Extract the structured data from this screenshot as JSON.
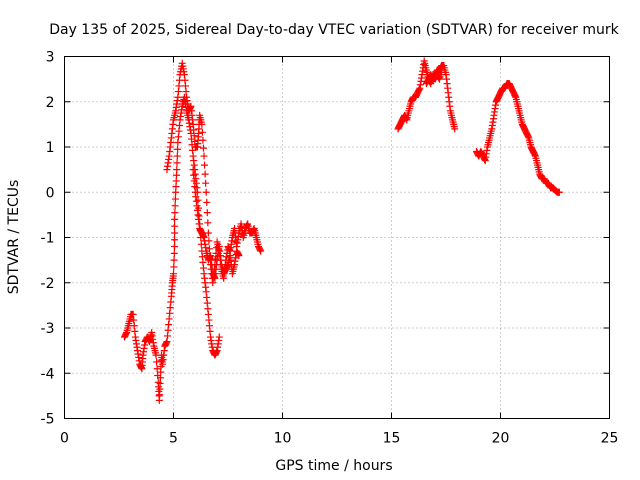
{
  "chart_data": {
    "type": "scatter",
    "title": "Day 135 of 2025, Sidereal Day-to-day VTEC variation (SDTVAR) for receiver murk",
    "xlabel": "GPS time / hours",
    "ylabel": "SDTVAR / TECUs",
    "xlim": [
      0,
      25
    ],
    "ylim": [
      -5,
      3
    ],
    "xticks": [
      0,
      5,
      10,
      15,
      20,
      25
    ],
    "yticks": [
      -5,
      -4,
      -3,
      -2,
      -1,
      0,
      1,
      2,
      3
    ],
    "xtick_labels": [
      "0",
      "5",
      "10",
      "15",
      "20",
      "25"
    ],
    "ytick_labels": [
      "-5",
      "-4",
      "-3",
      "-2",
      "-1",
      "0",
      "1",
      "2",
      "3"
    ],
    "grid": true,
    "marker": "+",
    "color": "#ff0000",
    "series": [
      {
        "name": "SDTVAR",
        "segments": [
          [
            [
              2.75,
              -3.2
            ],
            [
              2.85,
              -3.1
            ],
            [
              2.95,
              -2.9
            ],
            [
              3.05,
              -2.7
            ],
            [
              3.15,
              -2.7
            ],
            [
              3.25,
              -3.2
            ],
            [
              3.35,
              -3.5
            ],
            [
              3.45,
              -3.8
            ],
            [
              3.55,
              -3.9
            ],
            [
              3.6,
              -3.6
            ],
            [
              3.7,
              -3.3
            ],
            [
              3.8,
              -3.2
            ],
            [
              3.9,
              -3.3
            ],
            [
              4.0,
              -3.1
            ],
            [
              4.1,
              -3.4
            ],
            [
              4.2,
              -3.6
            ],
            [
              4.3,
              -4.2
            ],
            [
              4.35,
              -4.6
            ],
            [
              4.4,
              -4.1
            ],
            [
              4.45,
              -3.6
            ],
            [
              4.5,
              -3.8
            ],
            [
              4.6,
              -3.4
            ],
            [
              4.7,
              -3.3
            ],
            [
              4.8,
              -2.8
            ],
            [
              4.9,
              -2.3
            ],
            [
              4.95,
              -2.0
            ],
            [
              5.0,
              -1.8
            ],
            [
              5.05,
              -1.2
            ],
            [
              5.05,
              -0.6
            ],
            [
              5.1,
              0.0
            ],
            [
              5.15,
              0.5
            ],
            [
              5.2,
              1.1
            ],
            [
              5.3,
              1.6
            ],
            [
              5.4,
              1.9
            ],
            [
              5.5,
              2.1
            ],
            [
              5.6,
              1.8
            ],
            [
              5.7,
              1.6
            ],
            [
              5.8,
              1.3
            ],
            [
              5.9,
              0.8
            ],
            [
              6.0,
              0.4
            ],
            [
              6.1,
              0.0
            ],
            [
              6.2,
              -0.7
            ],
            [
              6.3,
              -1.3
            ],
            [
              6.4,
              -1.8
            ],
            [
              6.5,
              -2.2
            ],
            [
              6.6,
              -2.7
            ],
            [
              6.7,
              -3.2
            ],
            [
              6.8,
              -3.5
            ],
            [
              6.9,
              -3.6
            ],
            [
              7.0,
              -3.5
            ],
            [
              7.1,
              -3.2
            ]
          ],
          [
            [
              4.7,
              0.5
            ],
            [
              4.8,
              0.8
            ],
            [
              4.9,
              1.2
            ],
            [
              5.0,
              1.6
            ],
            [
              5.1,
              1.8
            ],
            [
              5.2,
              2.1
            ],
            [
              5.3,
              2.6
            ],
            [
              5.4,
              2.85
            ],
            [
              5.5,
              2.6
            ],
            [
              5.6,
              2.1
            ],
            [
              5.7,
              1.8
            ],
            [
              5.8,
              1.9
            ],
            [
              5.9,
              1.5
            ],
            [
              6.0,
              1.0
            ],
            [
              6.1,
              1.0
            ],
            [
              6.15,
              1.3
            ],
            [
              6.2,
              1.7
            ],
            [
              6.3,
              1.5
            ],
            [
              6.4,
              0.8
            ],
            [
              6.5,
              0.0
            ],
            [
              6.6,
              -0.9
            ],
            [
              6.7,
              -1.6
            ],
            [
              6.8,
              -2.0
            ],
            [
              6.9,
              -1.6
            ],
            [
              7.0,
              -1.1
            ],
            [
              7.1,
              -1.3
            ],
            [
              7.2,
              -1.7
            ],
            [
              7.3,
              -1.9
            ],
            [
              7.4,
              -1.5
            ],
            [
              7.5,
              -1.2
            ],
            [
              7.6,
              -1.3
            ],
            [
              7.7,
              -1.0
            ],
            [
              7.8,
              -0.8
            ],
            [
              7.9,
              -1.2
            ],
            [
              8.0,
              -0.9
            ],
            [
              8.1,
              -0.7
            ],
            [
              8.2,
              -1.0
            ],
            [
              8.3,
              -0.8
            ],
            [
              8.4,
              -0.7
            ],
            [
              8.5,
              -0.9
            ],
            [
              8.6,
              -0.9
            ],
            [
              8.7,
              -0.8
            ],
            [
              8.8,
              -1.0
            ],
            [
              8.9,
              -1.2
            ],
            [
              9.0,
              -1.3
            ]
          ],
          [
            [
              5.9,
              0.5
            ],
            [
              6.0,
              0.0
            ],
            [
              6.1,
              -0.4
            ],
            [
              6.2,
              -0.8
            ],
            [
              6.3,
              -0.9
            ],
            [
              6.4,
              -1.0
            ],
            [
              6.5,
              -1.3
            ],
            [
              6.6,
              -1.5
            ],
            [
              6.7,
              -1.4
            ],
            [
              6.8,
              -1.8
            ],
            [
              6.9,
              -1.9
            ],
            [
              7.0,
              -1.5
            ],
            [
              7.1,
              -1.2
            ],
            [
              7.2,
              -1.6
            ],
            [
              7.3,
              -1.8
            ],
            [
              7.4,
              -1.7
            ],
            [
              7.5,
              -1.6
            ],
            [
              7.6,
              -1.4
            ],
            [
              7.7,
              -1.8
            ],
            [
              7.8,
              -1.6
            ],
            [
              7.9,
              -1.3
            ],
            [
              8.0,
              -1.4
            ]
          ],
          [
            [
              15.3,
              1.4
            ],
            [
              15.4,
              1.5
            ],
            [
              15.5,
              1.6
            ],
            [
              15.6,
              1.7
            ],
            [
              15.7,
              1.6
            ],
            [
              15.8,
              1.8
            ],
            [
              15.9,
              2.0
            ],
            [
              16.0,
              2.1
            ],
            [
              16.1,
              2.1
            ],
            [
              16.2,
              2.2
            ],
            [
              16.3,
              2.3
            ],
            [
              16.4,
              2.6
            ],
            [
              16.5,
              2.9
            ],
            [
              16.6,
              2.7
            ],
            [
              16.7,
              2.5
            ],
            [
              16.8,
              2.6
            ],
            [
              16.9,
              2.5
            ],
            [
              17.0,
              2.6
            ],
            [
              17.1,
              2.7
            ],
            [
              17.2,
              2.7
            ],
            [
              17.3,
              2.8
            ],
            [
              17.4,
              2.8
            ],
            [
              17.5,
              2.6
            ],
            [
              17.6,
              2.2
            ],
            [
              17.7,
              1.8
            ],
            [
              17.8,
              1.6
            ],
            [
              17.9,
              1.4
            ]
          ],
          [
            [
              16.6,
              2.4
            ],
            [
              16.7,
              2.5
            ],
            [
              16.8,
              2.4
            ],
            [
              16.9,
              2.6
            ],
            [
              17.0,
              2.5
            ],
            [
              17.1,
              2.6
            ],
            [
              17.2,
              2.5
            ],
            [
              17.3,
              2.7
            ]
          ],
          [
            [
              18.9,
              0.9
            ],
            [
              19.0,
              0.8
            ],
            [
              19.1,
              0.9
            ],
            [
              19.2,
              0.8
            ],
            [
              19.3,
              0.7
            ],
            [
              19.4,
              1.0
            ],
            [
              19.5,
              1.2
            ],
            [
              19.6,
              1.4
            ],
            [
              19.7,
              1.7
            ],
            [
              19.8,
              2.0
            ],
            [
              19.9,
              2.1
            ],
            [
              20.0,
              2.2
            ],
            [
              20.1,
              2.3
            ],
            [
              20.2,
              2.3
            ],
            [
              20.3,
              2.4
            ],
            [
              20.4,
              2.4
            ],
            [
              20.5,
              2.3
            ],
            [
              20.6,
              2.2
            ],
            [
              20.7,
              2.1
            ],
            [
              20.8,
              1.9
            ],
            [
              20.9,
              1.7
            ],
            [
              21.0,
              1.5
            ],
            [
              21.1,
              1.4
            ],
            [
              21.2,
              1.3
            ],
            [
              21.3,
              1.2
            ],
            [
              21.4,
              1.0
            ],
            [
              21.5,
              0.9
            ],
            [
              21.6,
              0.8
            ],
            [
              21.7,
              0.6
            ],
            [
              21.8,
              0.4
            ],
            [
              21.9,
              0.3
            ],
            [
              22.0,
              0.3
            ],
            [
              22.1,
              0.2
            ],
            [
              22.2,
              0.2
            ],
            [
              22.3,
              0.1
            ],
            [
              22.4,
              0.1
            ],
            [
              22.5,
              0.05
            ],
            [
              22.6,
              0.0
            ],
            [
              22.7,
              0.0
            ]
          ]
        ]
      }
    ]
  }
}
